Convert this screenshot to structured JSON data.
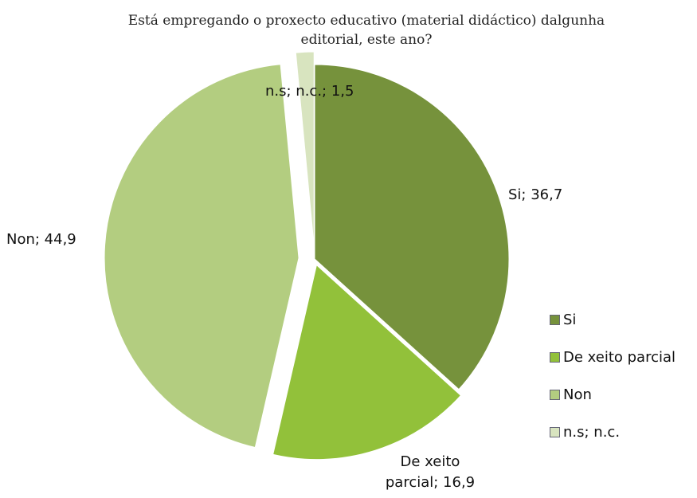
{
  "chart_data": {
    "type": "pie",
    "title": "Está empregando o proxecto educativo (material didáctico) dalgunha editorial, este ano?",
    "categories": [
      "Si",
      "De xeito parcial",
      "Non",
      "n.s; n.c."
    ],
    "values": [
      36.7,
      16.9,
      44.9,
      1.5
    ],
    "value_labels": [
      "Si; 36,7",
      "De xeito parcial; 16,9",
      "Non; 44,9",
      "n.s; n.c.; 1,5"
    ],
    "colors": [
      "#76923c",
      "#92c13a",
      "#b3cd80",
      "#d8e4bf"
    ],
    "legend": "right"
  }
}
